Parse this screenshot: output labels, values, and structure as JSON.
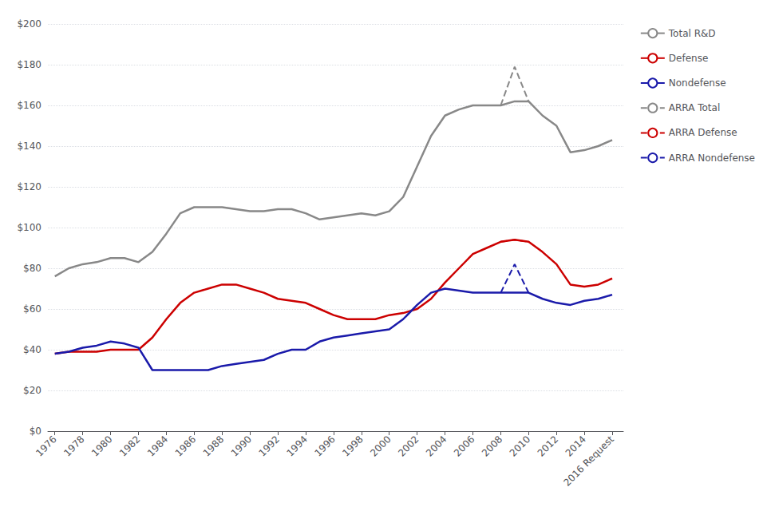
{
  "chart_data": {
    "type": "line",
    "x": [
      1976,
      1977,
      1978,
      1979,
      1980,
      1981,
      1982,
      1983,
      1984,
      1985,
      1986,
      1987,
      1988,
      1989,
      1990,
      1991,
      1992,
      1993,
      1994,
      1995,
      1996,
      1997,
      1998,
      1999,
      2000,
      2001,
      2002,
      2003,
      2004,
      2005,
      2006,
      2007,
      2008,
      2009,
      2010,
      2011,
      2012,
      2013,
      2014,
      2015,
      2016
    ],
    "series": [
      {
        "name": "Total R&D",
        "color": "#888888",
        "line_style": "solid",
        "values": [
          76,
          80,
          82,
          83,
          85,
          85,
          83,
          88,
          97,
          107,
          110,
          110,
          110,
          109,
          108,
          108,
          109,
          109,
          107,
          104,
          105,
          106,
          107,
          106,
          108,
          115,
          130,
          145,
          155,
          158,
          160,
          160,
          160,
          162,
          162,
          155,
          150,
          137,
          138,
          140,
          143
        ]
      },
      {
        "name": "Defense",
        "color": "#cc0000",
        "line_style": "solid",
        "values": [
          38,
          39,
          39,
          39,
          40,
          40,
          40,
          46,
          55,
          63,
          68,
          70,
          72,
          72,
          70,
          68,
          65,
          64,
          63,
          60,
          57,
          55,
          55,
          55,
          57,
          58,
          60,
          65,
          73,
          80,
          87,
          90,
          93,
          94,
          93,
          88,
          82,
          72,
          71,
          72,
          75
        ]
      },
      {
        "name": "Nondefense",
        "color": "#1a1aaa",
        "line_style": "solid",
        "values": [
          38,
          39,
          41,
          42,
          44,
          43,
          41,
          30,
          30,
          30,
          30,
          30,
          32,
          33,
          34,
          35,
          38,
          40,
          40,
          44,
          46,
          47,
          48,
          49,
          50,
          55,
          62,
          68,
          70,
          69,
          68,
          68,
          68,
          68,
          68,
          65,
          63,
          62,
          64,
          65,
          67
        ]
      },
      {
        "name": "ARRA Total",
        "color": "#888888",
        "line_style": "dashed",
        "x": [
          2008,
          2009,
          2010
        ],
        "values": [
          160,
          179,
          162
        ]
      },
      {
        "name": "ARRA Defense",
        "color": "#cc0000",
        "line_style": "dashed",
        "x": [
          2008,
          2009,
          2010
        ],
        "values": [
          93,
          94,
          93
        ]
      },
      {
        "name": "ARRA Nondefense",
        "color": "#1a1aaa",
        "line_style": "dashed",
        "x": [
          2008,
          2009,
          2010
        ],
        "values": [
          68,
          82,
          68
        ]
      }
    ],
    "xlim": [
      1975.5,
      2016.8
    ],
    "xticks": [
      1976,
      1978,
      1980,
      1982,
      1984,
      1986,
      1988,
      1990,
      1992,
      1994,
      1996,
      1998,
      2000,
      2002,
      2004,
      2006,
      2008,
      2010,
      2012,
      2014,
      {
        "value": 2016,
        "label": "2016 Request"
      }
    ],
    "ylim": [
      0,
      200
    ],
    "yticks": [
      {
        "value": 0,
        "label": "$0"
      },
      {
        "value": 20,
        "label": "$20"
      },
      {
        "value": 40,
        "label": "$40"
      },
      {
        "value": 60,
        "label": "$60"
      },
      {
        "value": 80,
        "label": "$80"
      },
      {
        "value": 100,
        "label": "$100"
      },
      {
        "value": 120,
        "label": "$120"
      },
      {
        "value": 140,
        "label": "$140"
      },
      {
        "value": 160,
        "label": "$160"
      },
      {
        "value": 180,
        "label": "$180"
      },
      {
        "value": 200,
        "label": "$200"
      }
    ],
    "grid": true,
    "legend": "upper right"
  }
}
